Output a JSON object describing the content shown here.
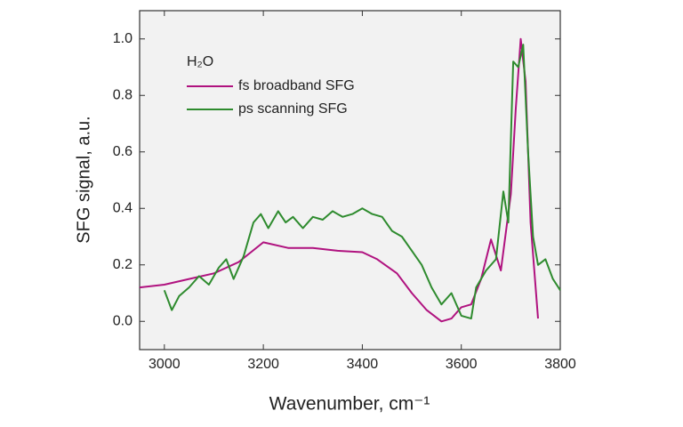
{
  "chart_data": {
    "type": "line",
    "x_label": "Wavenumber, cm⁻¹",
    "y_label": "SFG signal, a.u.",
    "legend_title": "H₂O",
    "legend": "upper left",
    "series": [
      {
        "name": "fs broadband SFG",
        "color": "#b0127f",
        "x": [
          2950,
          3000,
          3050,
          3100,
          3150,
          3200,
          3250,
          3300,
          3350,
          3400,
          3430,
          3470,
          3500,
          3530,
          3560,
          3580,
          3600,
          3620,
          3640,
          3660,
          3680,
          3700,
          3710,
          3720,
          3730,
          3740,
          3755
        ],
        "values": [
          0.12,
          0.13,
          0.15,
          0.17,
          0.21,
          0.28,
          0.26,
          0.26,
          0.25,
          0.245,
          0.22,
          0.17,
          0.1,
          0.04,
          0.0,
          0.01,
          0.05,
          0.06,
          0.15,
          0.29,
          0.18,
          0.45,
          0.75,
          1.0,
          0.85,
          0.35,
          0.01
        ]
      },
      {
        "name": "ps scanning SFG",
        "color": "#2e8b2e",
        "x": [
          3000,
          3015,
          3030,
          3050,
          3070,
          3090,
          3110,
          3125,
          3140,
          3160,
          3180,
          3195,
          3210,
          3230,
          3245,
          3260,
          3280,
          3300,
          3320,
          3340,
          3360,
          3380,
          3400,
          3420,
          3440,
          3460,
          3480,
          3500,
          3520,
          3540,
          3560,
          3580,
          3600,
          3620,
          3630,
          3650,
          3670,
          3685,
          3695,
          3705,
          3715,
          3725,
          3735,
          3745,
          3755,
          3770,
          3785,
          3800
        ],
        "values": [
          0.11,
          0.04,
          0.09,
          0.12,
          0.16,
          0.13,
          0.19,
          0.22,
          0.15,
          0.23,
          0.35,
          0.38,
          0.33,
          0.39,
          0.35,
          0.37,
          0.33,
          0.37,
          0.36,
          0.39,
          0.37,
          0.38,
          0.4,
          0.38,
          0.37,
          0.32,
          0.3,
          0.25,
          0.2,
          0.12,
          0.06,
          0.1,
          0.02,
          0.01,
          0.12,
          0.18,
          0.22,
          0.46,
          0.35,
          0.92,
          0.9,
          0.98,
          0.6,
          0.3,
          0.2,
          0.22,
          0.15,
          0.11
        ]
      }
    ],
    "xlim": [
      2950,
      3800
    ],
    "ylim": [
      -0.1,
      1.1
    ],
    "xticks": [
      3000,
      3200,
      3400,
      3600,
      3800
    ],
    "yticks": [
      {
        "value": 0,
        "label": "0.0"
      },
      0.2,
      0.4,
      0.6,
      0.8,
      {
        "value": 1,
        "label": "1.0"
      }
    ]
  }
}
